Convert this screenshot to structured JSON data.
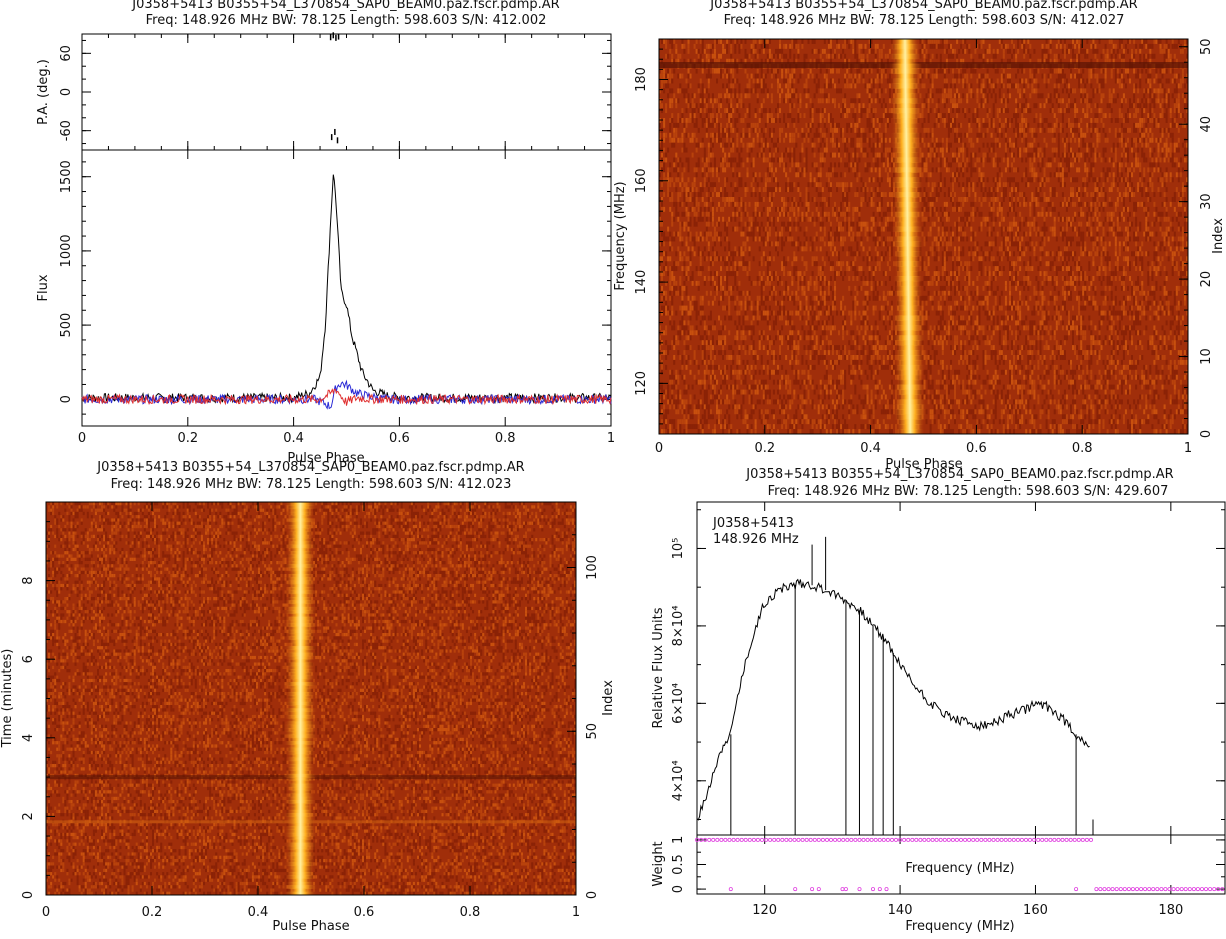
{
  "panels": {
    "tl": {
      "title": "J0358+5413  B0355+54_L370854_SAP0_BEAM0.paz.fscr.pdmp.AR",
      "subtitle": "Freq: 148.926 MHz BW: 78.125 Length: 598.603 S/N: 412.002",
      "pa_label": "P.A. (deg.)",
      "flux_label": "Flux",
      "xlabel": "Pulse Phase"
    },
    "tr": {
      "title": "J0358+5413  B0355+54_L370854_SAP0_BEAM0.paz.fscr.pdmp.AR",
      "subtitle": "Freq: 148.926 MHz BW: 78.125 Length: 598.603 S/N: 412.027",
      "ylabel": "Frequency (MHz)",
      "y2label": "Index",
      "xlabel": "Pulse Phase"
    },
    "bl": {
      "title": "J0358+5413  B0355+54_L370854_SAP0_BEAM0.paz.fscr.pdmp.AR",
      "subtitle": "Freq: 148.926 MHz BW: 78.125 Length: 598.603 S/N: 412.023",
      "ylabel": "Time (minutes)",
      "y2label": "Index",
      "xlabel": "Pulse Phase"
    },
    "br": {
      "title": "J0358+5413  B0355+54_L370854_SAP0_BEAM0.paz.fscr.pdmp.AR",
      "subtitle": "Freq: 148.926 MHz BW: 78.125 Length: 598.603 S/N: 429.607",
      "annot1": "J0358+5413",
      "annot2": "148.926 MHz",
      "ylabel": "Relative Flux Units",
      "wlabel": "Weight",
      "xlabel_mid": "Frequency (MHz)",
      "xlabel": "Frequency (MHz)"
    }
  },
  "chart_data": [
    {
      "id": "tl-pa",
      "type": "scatter",
      "ylabel": "P.A. (deg.)",
      "xlim": [
        0,
        1
      ],
      "ylim": [
        -90,
        90
      ],
      "yticks": [
        -60,
        0,
        60
      ],
      "points": [
        [
          0.47,
          85
        ],
        [
          0.475,
          88
        ],
        [
          0.48,
          84
        ],
        [
          0.485,
          86
        ],
        [
          0.472,
          -70
        ],
        [
          0.478,
          -62
        ],
        [
          0.483,
          -75
        ]
      ]
    },
    {
      "id": "tl-profile",
      "type": "line",
      "xlabel": "Pulse Phase",
      "ylabel": "Flux",
      "xlim": [
        0,
        1
      ],
      "ylim": [
        -180,
        1680
      ],
      "xticks": [
        0,
        0.2,
        0.4,
        0.6,
        0.8,
        1
      ],
      "yticks": [
        0,
        500,
        1000,
        1500
      ],
      "series": [
        {
          "color": "#000000",
          "x": [
            0,
            0.4,
            0.43,
            0.45,
            0.46,
            0.47,
            0.475,
            0.48,
            0.49,
            0.5,
            0.51,
            0.53,
            0.55,
            0.58,
            0.62,
            1
          ],
          "y": [
            10,
            10,
            40,
            150,
            500,
            1200,
            1530,
            1350,
            720,
            640,
            430,
            180,
            60,
            20,
            10,
            10
          ]
        },
        {
          "color": "#2a2ad6",
          "x": [
            0,
            0.44,
            0.46,
            0.47,
            0.48,
            0.49,
            0.5,
            0.52,
            0.55,
            0.58,
            1
          ],
          "y": [
            0,
            0,
            -30,
            -50,
            80,
            110,
            95,
            40,
            15,
            0,
            0
          ]
        },
        {
          "color": "#e03030",
          "x": [
            0,
            0.45,
            0.47,
            0.48,
            0.49,
            0.5,
            0.52,
            0.55,
            1
          ],
          "y": [
            0,
            0,
            40,
            70,
            20,
            -20,
            10,
            0,
            0
          ]
        }
      ]
    },
    {
      "id": "tr-freq-phase",
      "type": "heatmap",
      "xlabel": "Pulse Phase",
      "ylabel": "Frequency (MHz)",
      "y2label": "Index",
      "xlim": [
        0,
        1
      ],
      "ylim": [
        110,
        188
      ],
      "y2lim": [
        0,
        51
      ],
      "xticks": [
        0,
        0.2,
        0.4,
        0.6,
        0.8,
        1
      ],
      "yticks": [
        120,
        140,
        160,
        180
      ],
      "y2ticks": [
        0,
        10,
        20,
        30,
        40,
        50
      ]
    },
    {
      "id": "bl-time-phase",
      "type": "heatmap",
      "xlabel": "Pulse Phase",
      "ylabel": "Time (minutes)",
      "y2label": "Index",
      "xlim": [
        0,
        1
      ],
      "ylim": [
        0,
        10
      ],
      "y2lim": [
        0,
        120
      ],
      "xticks": [
        0,
        0.2,
        0.4,
        0.6,
        0.8,
        1
      ],
      "yticks": [
        0,
        2,
        4,
        6,
        8
      ],
      "y2ticks": [
        0,
        50,
        100
      ]
    },
    {
      "id": "br-spectrum",
      "type": "line",
      "ylabel": "Relative Flux Units",
      "xlabel": "Frequency (MHz)",
      "xlim": [
        110,
        188
      ],
      "ylim": [
        26000,
        112000
      ],
      "xticks": [
        120,
        140,
        160,
        180
      ],
      "yticks": [
        40000,
        60000,
        80000,
        100000
      ],
      "ytick_labels": [
        "4×10⁴",
        "6×10⁴",
        "8×10⁴",
        "10⁵"
      ],
      "series": [
        {
          "color": "#000000",
          "x": [
            110,
            111,
            112,
            113,
            114,
            115,
            116,
            118,
            120,
            122,
            124,
            126,
            128,
            130,
            132,
            134,
            136,
            138,
            140,
            142,
            144,
            146,
            148,
            150,
            152,
            154,
            156,
            158,
            160,
            162,
            164,
            166,
            168
          ],
          "y": [
            30000,
            34000,
            40000,
            45000,
            50000,
            52000,
            62000,
            76000,
            86000,
            89000,
            90500,
            91000,
            90000,
            88500,
            86500,
            84000,
            80000,
            76000,
            70000,
            65000,
            61000,
            58000,
            56000,
            55000,
            54000,
            55000,
            57000,
            58000,
            60000,
            59000,
            56000,
            52000,
            49000
          ]
        }
      ],
      "spikes": [
        {
          "x": 115,
          "y": 26000
        },
        {
          "x": 124.5,
          "y": 26000
        },
        {
          "x": 127,
          "y": 101000
        },
        {
          "x": 129,
          "y": 103000
        },
        {
          "x": 132,
          "y": 26000
        },
        {
          "x": 134,
          "y": 26000
        },
        {
          "x": 136,
          "y": 26000
        },
        {
          "x": 137.5,
          "y": 26000
        },
        {
          "x": 139,
          "y": 26000
        },
        {
          "x": 166,
          "y": 26000
        },
        {
          "x": 168.5,
          "y": 26000
        }
      ]
    },
    {
      "id": "br-weights",
      "type": "scatter",
      "ylabel": "Weight",
      "xlabel": "Frequency (MHz)",
      "xlim": [
        110,
        188
      ],
      "ylim": [
        -0.1,
        1.1
      ],
      "yticks": [
        0,
        0.5,
        1
      ],
      "ones_range": [
        110,
        168.5
      ],
      "zeros_range": [
        169,
        188
      ],
      "zero_points": [
        115,
        124.5,
        127,
        128,
        131.5,
        132,
        134,
        136,
        137,
        138,
        166
      ],
      "color": "#e040e0"
    }
  ]
}
